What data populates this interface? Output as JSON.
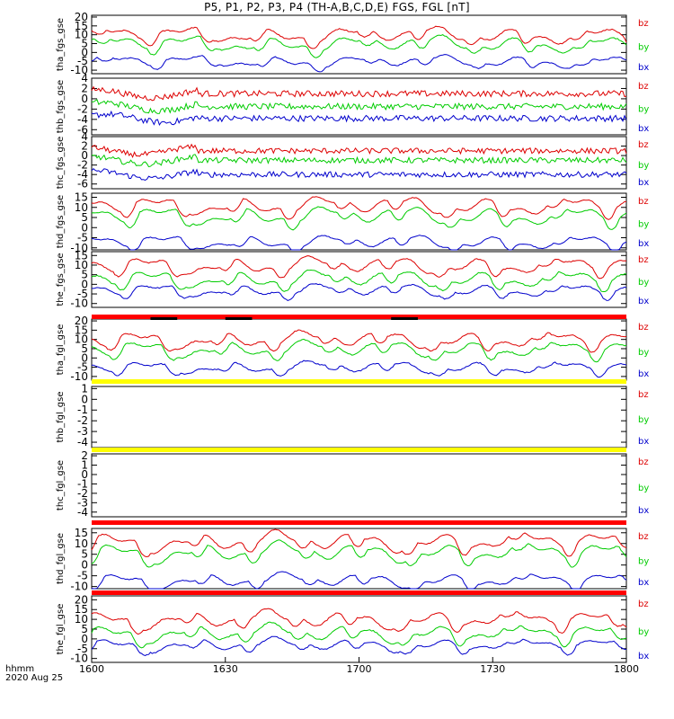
{
  "title": "P5, P1, P2, P3, P4 (TH-A,B,C,D,E) FGS, FGL [nT]",
  "footer": {
    "hhmm": "hhmm",
    "date": "2020 Aug 25"
  },
  "colors": {
    "bz": "#dd0000",
    "by": "#00cc00",
    "bx": "#0000cc",
    "flag_red": "#ff0000",
    "flag_yellow": "#ffff00",
    "axis": "#000000"
  },
  "chart_data": {
    "type": "line",
    "x_range": [
      "1600",
      "1800"
    ],
    "x_ticks": [
      "1600",
      "1630",
      "1700",
      "1730",
      "1800"
    ],
    "legend": [
      "bz",
      "by",
      "bx"
    ],
    "panels": [
      {
        "ylabel": "tha_fgs_gse",
        "yticks": [
          "20",
          "15",
          "10",
          "5",
          "0",
          "-5",
          "-10"
        ],
        "ylim": [
          -12,
          21
        ],
        "base": {
          "bz": 10,
          "by": 5,
          "bx": -5
        },
        "noise": 0.3,
        "kind": "smooth",
        "flag_after": {
          "color": "red",
          "gaps": [
            [
              0.11,
              0.16
            ],
            [
              0.25,
              0.3
            ],
            [
              0.56,
              0.61
            ]
          ]
        }
      },
      {
        "ylabel": "thb_fgs_gse",
        "yticks": [
          "4",
          "2",
          "0",
          "-2",
          "-4",
          "-6"
        ],
        "ylim": [
          -7,
          4
        ],
        "base": {
          "bz": 1,
          "by": -1.5,
          "bx": -3.8
        },
        "noise": 0.3,
        "kind": "noisy"
      },
      {
        "ylabel": "thc_fgs_gse",
        "yticks": [
          "4",
          "2",
          "0",
          "-2",
          "-4",
          "-6"
        ],
        "ylim": [
          -7,
          4
        ],
        "base": {
          "bz": 1,
          "by": -1,
          "bx": -4
        },
        "noise": 0.3,
        "kind": "noisy"
      },
      {
        "ylabel": "thd_fgs_gse",
        "yticks": [
          "15",
          "10",
          "5",
          "0",
          "-5",
          "-10"
        ],
        "ylim": [
          -11,
          17
        ],
        "base": {
          "bz": 11,
          "by": 6,
          "bx": -7
        },
        "noise": 0.2,
        "kind": "smooth"
      },
      {
        "ylabel": "the_fgs_gse",
        "yticks": [
          "15",
          "10",
          "5",
          "0",
          "-5",
          "-10"
        ],
        "ylim": [
          -12,
          17
        ],
        "base": {
          "bz": 10,
          "by": 3,
          "bx": -3
        },
        "noise": 0.3,
        "kind": "smooth"
      },
      {
        "ylabel": "tha_fgl_gse",
        "yticks": [
          "20",
          "15",
          "10",
          "5",
          "0",
          "-5",
          "-10"
        ],
        "ylim": [
          -12,
          21
        ],
        "base": {
          "bz": 10,
          "by": 5,
          "bx": -5
        },
        "noise": 0.3,
        "kind": "smooth",
        "flag_before": "red"
      },
      {
        "ylabel": "thb_fgl_gse",
        "yticks": [
          "1",
          "0",
          "-1",
          "-2",
          "-3",
          "-4"
        ],
        "ylim": [
          -4.5,
          1.2
        ],
        "kind": "empty",
        "flag_before": "yellow"
      },
      {
        "ylabel": "thc_fgl_gse",
        "yticks": [
          "2",
          "1",
          "0",
          "-1",
          "-2",
          "-3",
          "-4"
        ],
        "ylim": [
          -4.5,
          2.2
        ],
        "kind": "empty",
        "flag_before": "yellow"
      },
      {
        "ylabel": "thd_fgl_gse",
        "yticks": [
          "15",
          "10",
          "5",
          "0",
          "-5",
          "-10"
        ],
        "ylim": [
          -11,
          17
        ],
        "base": {
          "bz": 11,
          "by": 6,
          "bx": -7
        },
        "noise": 0.2,
        "kind": "smooth",
        "flag_before": "red"
      },
      {
        "ylabel": "the_fgl_gse",
        "yticks": [
          "20",
          "15",
          "10",
          "5",
          "0",
          "-5",
          "-10"
        ],
        "ylim": [
          -12,
          22
        ],
        "base": {
          "bz": 10,
          "by": 3,
          "bx": -3
        },
        "noise": 0.3,
        "kind": "smooth",
        "flag_before": "red"
      }
    ]
  }
}
